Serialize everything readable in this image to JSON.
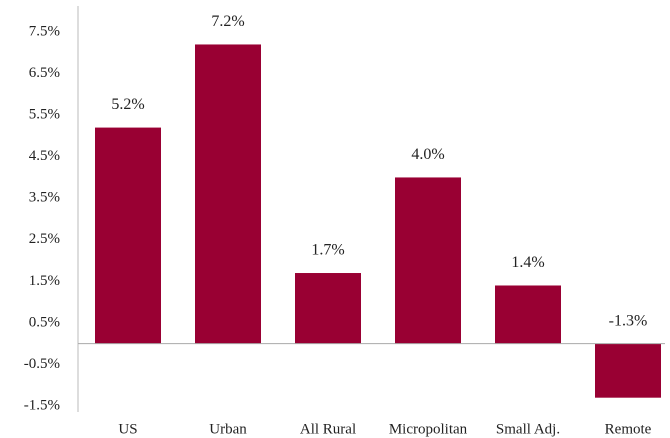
{
  "chart_data": {
    "type": "bar",
    "categories": [
      "US",
      "Urban",
      "All Rural",
      "Micropolitan",
      "Small Adj.",
      "Remote"
    ],
    "values": [
      5.2,
      7.2,
      1.7,
      4.0,
      1.4,
      -1.3
    ],
    "value_labels": [
      "5.2%",
      "7.2%",
      "1.7%",
      "4.0%",
      "1.4%",
      "-1.3%"
    ],
    "color": "#990033",
    "ylim": [
      -1.5,
      7.5
    ],
    "yticks": [
      {
        "value": 7.5,
        "label": "7.5%"
      },
      {
        "value": 6.5,
        "label": "6.5%"
      },
      {
        "value": 5.5,
        "label": "5.5%"
      },
      {
        "value": 4.5,
        "label": "4.5%"
      },
      {
        "value": 3.5,
        "label": "3.5%"
      },
      {
        "value": 2.5,
        "label": "2.5%"
      },
      {
        "value": 1.5,
        "label": "1.5%"
      },
      {
        "value": 0.5,
        "label": "0.5%"
      },
      {
        "value": -0.5,
        "label": "-0.5%"
      },
      {
        "value": -1.5,
        "label": "-1.5%"
      }
    ],
    "grid": false
  }
}
